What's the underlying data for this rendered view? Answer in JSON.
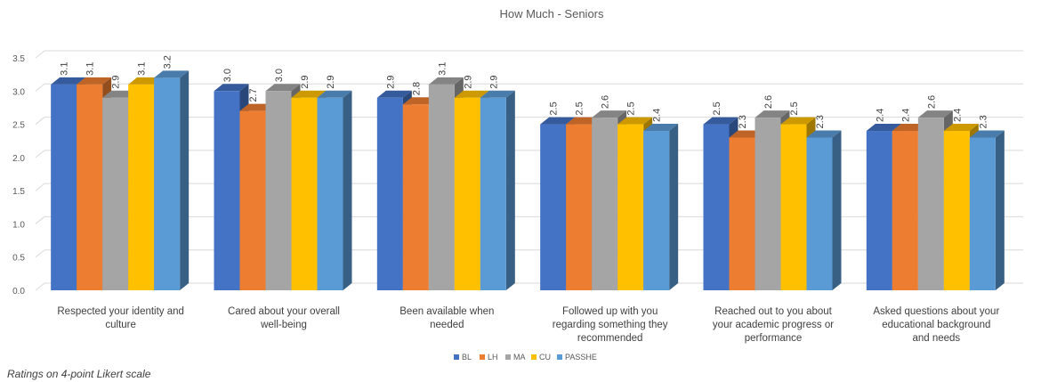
{
  "chart_data": {
    "type": "bar",
    "title": "How Much - Seniors",
    "xlabel": "",
    "ylabel": "",
    "ylim": [
      0,
      3.5
    ],
    "yticks": [
      "0.0",
      "0.5",
      "1.0",
      "1.5",
      "2.0",
      "2.5",
      "3.0",
      "3.5"
    ],
    "grid": true,
    "legend_position": "bottom",
    "categories": [
      [
        "Respected your identity and",
        "culture"
      ],
      [
        "Cared about your overall",
        "well-being"
      ],
      [
        "Been available when",
        "needed"
      ],
      [
        "Followed up with you",
        "regarding something they",
        "recommended"
      ],
      [
        "Reached out to you about",
        "your academic progress or",
        "performance"
      ],
      [
        "Asked questions about your",
        "educational background",
        "and needs"
      ]
    ],
    "series": [
      {
        "name": "BL",
        "color": "#4472C4",
        "values": [
          3.1,
          3.0,
          2.9,
          2.5,
          2.5,
          2.4
        ]
      },
      {
        "name": "LH",
        "color": "#ED7D31",
        "values": [
          3.1,
          2.7,
          2.8,
          2.5,
          2.3,
          2.4
        ]
      },
      {
        "name": "MA",
        "color": "#A5A5A5",
        "values": [
          2.9,
          3.0,
          3.1,
          2.6,
          2.6,
          2.6
        ]
      },
      {
        "name": "CU",
        "color": "#FFC000",
        "values": [
          3.1,
          2.9,
          2.9,
          2.5,
          2.5,
          2.4
        ]
      },
      {
        "name": "PASSHE",
        "color": "#5B9BD5",
        "values": [
          3.2,
          2.9,
          2.9,
          2.4,
          2.3,
          2.3
        ]
      }
    ]
  },
  "footnote": "Ratings on 4-point Likert scale"
}
